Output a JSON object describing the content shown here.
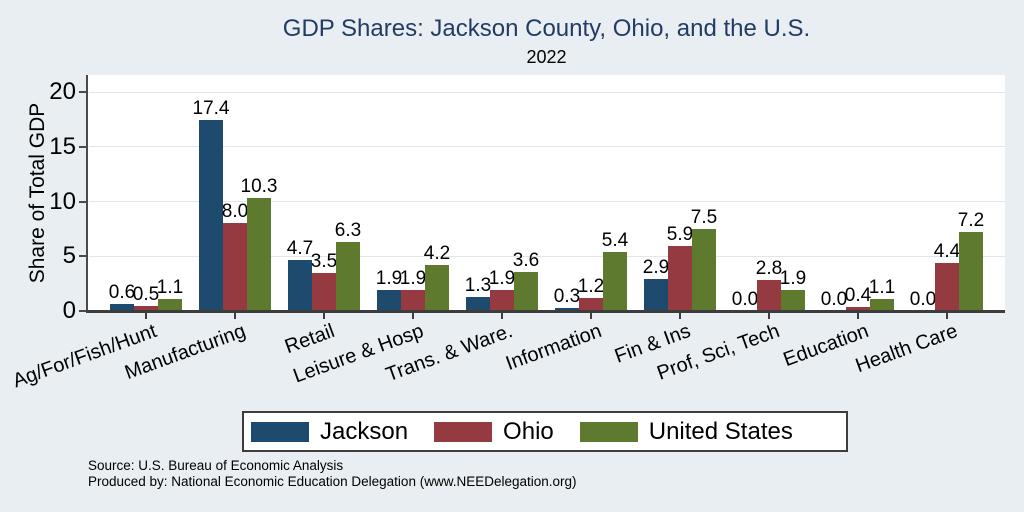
{
  "chart_data": {
    "type": "bar",
    "title": "GDP Shares: Jackson County, Ohio, and the U.S.",
    "subtitle": "2022",
    "ylabel": "Share of Total GDP",
    "xlabel": "",
    "ylim": [
      0,
      20
    ],
    "yticks": [
      0,
      5,
      10,
      15,
      20
    ],
    "grid": true,
    "legend_position": "bottom",
    "value_labels": "one decimal above each bar",
    "categories": [
      "Ag/For/Fish/Hunt",
      "Manufacturing",
      "Retail",
      "Leisure & Hosp",
      "Trans. & Ware.",
      "Information",
      "Fin & Ins",
      "Prof, Sci, Tech",
      "Education",
      "Health Care"
    ],
    "series": [
      {
        "name": "Jackson",
        "color": "#1e4a6e",
        "values": [
          0.6,
          17.4,
          4.7,
          1.9,
          1.3,
          0.3,
          2.9,
          0.0,
          0.0,
          0.0
        ]
      },
      {
        "name": "Ohio",
        "color": "#963a41",
        "values": [
          0.5,
          8.0,
          3.5,
          1.9,
          1.9,
          1.2,
          5.9,
          2.8,
          0.4,
          4.4
        ]
      },
      {
        "name": "United States",
        "color": "#5d7a2f",
        "values": [
          1.1,
          10.3,
          6.3,
          4.2,
          3.6,
          5.4,
          7.5,
          1.9,
          1.1,
          7.2
        ]
      }
    ]
  },
  "footer": {
    "source_line1": "Source: U.S. Bureau of Economic Analysis",
    "source_line2": "Produced by: National Economic Education Delegation (www.NEEDelegation.org)"
  },
  "colors": {
    "background": "#e8eef2",
    "plot_background": "#ffffff",
    "title": "#223c66",
    "gridline": "#dce7ee",
    "axis": "#3d3d3d"
  }
}
